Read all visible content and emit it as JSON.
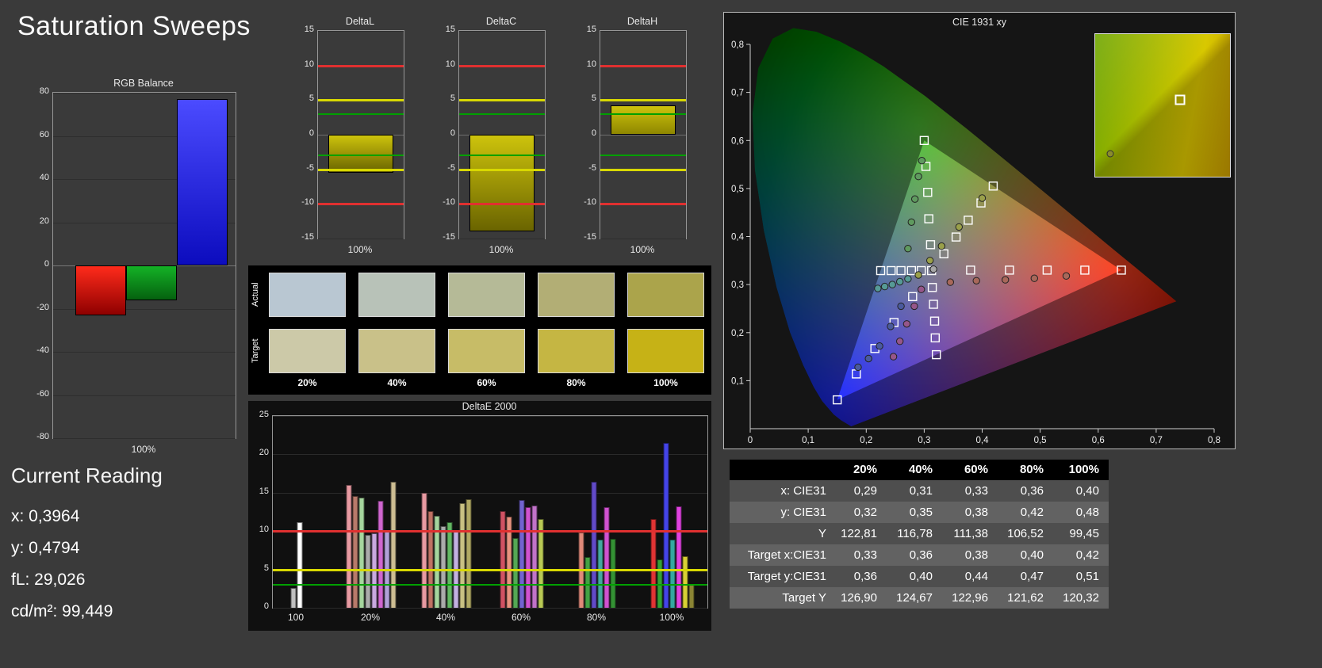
{
  "page": {
    "title": "Saturation Sweeps"
  },
  "current_reading": {
    "heading": "Current Reading",
    "lines": [
      "x: 0,3964",
      "y: 0,4794",
      "fL: 29,026",
      "cd/m²: 99,449"
    ]
  },
  "swatches": {
    "row_labels": [
      "Actual",
      "Target"
    ],
    "col_labels": [
      "20%",
      "40%",
      "60%",
      "80%",
      "100%"
    ],
    "actual_colors": [
      "#b9c7d2",
      "#b8c2b8",
      "#b5ba97",
      "#b2ae75",
      "#aba44b"
    ],
    "target_colors": [
      "#ccc9a8",
      "#c9c189",
      "#c7bc67",
      "#c5b643",
      "#c6b216"
    ]
  },
  "table": {
    "headers": [
      "",
      "20%",
      "40%",
      "60%",
      "80%",
      "100%"
    ],
    "rows": [
      {
        "label": "x: CIE31",
        "values": [
          "0,29",
          "0,31",
          "0,33",
          "0,36",
          "0,40"
        ]
      },
      {
        "label": "y: CIE31",
        "values": [
          "0,32",
          "0,35",
          "0,38",
          "0,42",
          "0,48"
        ]
      },
      {
        "label": "Y",
        "values": [
          "122,81",
          "116,78",
          "111,38",
          "106,52",
          "99,45"
        ]
      },
      {
        "label": "Target x:CIE31",
        "values": [
          "0,33",
          "0,36",
          "0,38",
          "0,40",
          "0,42"
        ]
      },
      {
        "label": "Target y:CIE31",
        "values": [
          "0,36",
          "0,40",
          "0,44",
          "0,47",
          "0,51"
        ]
      },
      {
        "label": "Target Y",
        "values": [
          "126,90",
          "124,67",
          "122,96",
          "121,62",
          "120,32"
        ]
      }
    ]
  },
  "chart_data": [
    {
      "id": "rgb_balance",
      "type": "bar",
      "title": "RGB Balance",
      "categories": [
        "Red",
        "Green",
        "Blue"
      ],
      "values": [
        -23,
        -16,
        77
      ],
      "colors": [
        "#e81010",
        "#0f9a20",
        "#2626f0"
      ],
      "ylim": [
        -80,
        80
      ],
      "yticks": [
        80,
        60,
        40,
        20,
        0,
        -20,
        -40,
        -60,
        -80
      ],
      "xlabel": "100%"
    },
    {
      "id": "delta_l",
      "type": "bar",
      "title": "DeltaL",
      "categories": [
        "100%"
      ],
      "values": [
        -5.5
      ],
      "ylim": [
        -15,
        15
      ],
      "yticks": [
        15,
        10,
        5,
        0,
        -5,
        -10,
        -15
      ],
      "ref_lines": [
        {
          "y": 10,
          "color": "#e03030"
        },
        {
          "y": 5,
          "color": "#d8d800"
        },
        {
          "y": 3,
          "color": "#00a000"
        },
        {
          "y": -3,
          "color": "#00a000"
        },
        {
          "y": -5,
          "color": "#d8d800"
        },
        {
          "y": -10,
          "color": "#e03030"
        }
      ],
      "bar_color": "#b8ae00",
      "xlabel": "100%"
    },
    {
      "id": "delta_c",
      "type": "bar",
      "title": "DeltaC",
      "categories": [
        "100%"
      ],
      "values": [
        -14
      ],
      "ylim": [
        -15,
        15
      ],
      "yticks": [
        15,
        10,
        5,
        0,
        -5,
        -10,
        -15
      ],
      "ref_lines": [
        {
          "y": 10,
          "color": "#e03030"
        },
        {
          "y": 5,
          "color": "#d8d800"
        },
        {
          "y": 3,
          "color": "#00a000"
        },
        {
          "y": -3,
          "color": "#00a000"
        },
        {
          "y": -5,
          "color": "#d8d800"
        },
        {
          "y": -10,
          "color": "#e03030"
        }
      ],
      "bar_color": "#b8ae00",
      "xlabel": "100%"
    },
    {
      "id": "delta_h",
      "type": "bar",
      "title": "DeltaH",
      "categories": [
        "100%"
      ],
      "values": [
        4.2
      ],
      "ylim": [
        -15,
        15
      ],
      "yticks": [
        15,
        10,
        5,
        0,
        -5,
        -10,
        -15
      ],
      "ref_lines": [
        {
          "y": 10,
          "color": "#e03030"
        },
        {
          "y": 5,
          "color": "#d8d800"
        },
        {
          "y": 3,
          "color": "#00a000"
        },
        {
          "y": -3,
          "color": "#00a000"
        },
        {
          "y": -5,
          "color": "#d8d800"
        },
        {
          "y": -10,
          "color": "#e03030"
        }
      ],
      "bar_color": "#b8ae00",
      "xlabel": "100%"
    },
    {
      "id": "delta_e2000",
      "type": "bar",
      "title": "DeltaE 2000",
      "ylim": [
        0,
        25
      ],
      "yticks": [
        0,
        5,
        10,
        15,
        20,
        25
      ],
      "ref_lines": [
        {
          "y": 10,
          "color": "#e03030"
        },
        {
          "y": 5,
          "color": "#d8d800"
        },
        {
          "y": 3,
          "color": "#00a000"
        }
      ],
      "groups": [
        {
          "label": "100",
          "bars": [
            {
              "v": 2.6,
              "c": "#c0c0c0"
            },
            {
              "v": 11.2,
              "c": "#ffffff"
            }
          ]
        },
        {
          "label": "20%",
          "bars": [
            {
              "v": 16.0,
              "c": "#e89aa2"
            },
            {
              "v": 14.6,
              "c": "#b87a6a"
            },
            {
              "v": 14.4,
              "c": "#a6d69e"
            },
            {
              "v": 9.5,
              "c": "#ababab"
            },
            {
              "v": 9.7,
              "c": "#c9a9e0"
            },
            {
              "v": 14.0,
              "c": "#cf66cf"
            },
            {
              "v": 9.9,
              "c": "#b1a1d9"
            },
            {
              "v": 16.4,
              "c": "#cdbd92"
            }
          ]
        },
        {
          "label": "40%",
          "bars": [
            {
              "v": 15.0,
              "c": "#e89aa2"
            },
            {
              "v": 12.6,
              "c": "#bf7263"
            },
            {
              "v": 12.0,
              "c": "#a6d69e"
            },
            {
              "v": 10.6,
              "c": "#ababab"
            },
            {
              "v": 11.2,
              "c": "#63b863"
            },
            {
              "v": 9.9,
              "c": "#c3b2e2"
            },
            {
              "v": 13.6,
              "c": "#c9c183"
            },
            {
              "v": 14.2,
              "c": "#b1a963"
            }
          ]
        },
        {
          "label": "60%",
          "bars": [
            {
              "v": 12.6,
              "c": "#d05263"
            },
            {
              "v": 11.9,
              "c": "#e8937f"
            },
            {
              "v": 9.1,
              "c": "#54a854"
            },
            {
              "v": 14.1,
              "c": "#7263d0"
            },
            {
              "v": 13.1,
              "c": "#d052d0"
            },
            {
              "v": 13.3,
              "c": "#c273c9"
            },
            {
              "v": 11.6,
              "c": "#b9c954"
            }
          ]
        },
        {
          "label": "80%",
          "bars": [
            {
              "v": 9.8,
              "c": "#e08a79"
            },
            {
              "v": 6.6,
              "c": "#44a244"
            },
            {
              "v": 16.4,
              "c": "#624bc9"
            },
            {
              "v": 8.9,
              "c": "#44a8a0"
            },
            {
              "v": 13.1,
              "c": "#d052d0"
            },
            {
              "v": 9.0,
              "c": "#349234"
            }
          ]
        },
        {
          "label": "100%",
          "bars": [
            {
              "v": 11.6,
              "c": "#e03434"
            },
            {
              "v": 6.3,
              "c": "#34a234"
            },
            {
              "v": 21.5,
              "c": "#4444e8"
            },
            {
              "v": 8.9,
              "c": "#34a8a0"
            },
            {
              "v": 13.2,
              "c": "#e042e0"
            },
            {
              "v": 6.7,
              "c": "#d8d034"
            },
            {
              "v": 3.0,
              "c": "#8a8434"
            }
          ]
        }
      ]
    },
    {
      "id": "cie1931",
      "type": "scatter",
      "title": "CIE 1931 xy",
      "xlim": [
        0,
        0.8
      ],
      "ylim": [
        0,
        0.8
      ],
      "xtick_labels": [
        "0",
        "0,1",
        "0,2",
        "0,3",
        "0,4",
        "0,5",
        "0,6",
        "0,7",
        "0,8"
      ],
      "ytick_labels": [
        "0,1",
        "0,2",
        "0,3",
        "0,4",
        "0,5",
        "0,6",
        "0,7",
        "0,8"
      ],
      "gamut_triangle": [
        [
          0.64,
          0.33
        ],
        [
          0.3,
          0.6
        ],
        [
          0.15,
          0.06
        ]
      ],
      "targets": {
        "red": [
          [
            0.38,
            0.33
          ],
          [
            0.447,
            0.33
          ],
          [
            0.512,
            0.33
          ],
          [
            0.577,
            0.33
          ],
          [
            0.64,
            0.33
          ]
        ],
        "green": [
          [
            0.311,
            0.383
          ],
          [
            0.308,
            0.437
          ],
          [
            0.306,
            0.492
          ],
          [
            0.303,
            0.546
          ],
          [
            0.3,
            0.6
          ]
        ],
        "blue": [
          [
            0.28,
            0.275
          ],
          [
            0.248,
            0.221
          ],
          [
            0.215,
            0.167
          ],
          [
            0.183,
            0.114
          ],
          [
            0.15,
            0.06
          ]
        ],
        "yellow": [
          [
            0.334,
            0.364
          ],
          [
            0.355,
            0.399
          ],
          [
            0.376,
            0.434
          ],
          [
            0.398,
            0.47
          ],
          [
            0.419,
            0.505
          ]
        ],
        "cyan": [
          [
            0.295,
            0.329
          ],
          [
            0.278,
            0.329
          ],
          [
            0.26,
            0.329
          ],
          [
            0.243,
            0.329
          ],
          [
            0.225,
            0.329
          ]
        ],
        "magenta": [
          [
            0.314,
            0.294
          ],
          [
            0.316,
            0.259
          ],
          [
            0.318,
            0.224
          ],
          [
            0.319,
            0.189
          ],
          [
            0.321,
            0.154
          ]
        ],
        "white": [
          [
            0.3127,
            0.329
          ]
        ]
      },
      "measurements": {
        "yellow": {
          "color": "#9aa04a",
          "points": [
            [
              0.29,
              0.32
            ],
            [
              0.31,
              0.35
            ],
            [
              0.33,
              0.38
            ],
            [
              0.36,
              0.42
            ],
            [
              0.4,
              0.48
            ]
          ]
        },
        "red": {
          "color": "#a8685a",
          "points": [
            [
              0.345,
              0.305
            ],
            [
              0.39,
              0.308
            ],
            [
              0.44,
              0.31
            ],
            [
              0.49,
              0.313
            ],
            [
              0.545,
              0.318
            ]
          ]
        },
        "green": {
          "color": "#5f9a5f",
          "points": [
            [
              0.272,
              0.375
            ],
            [
              0.278,
              0.43
            ],
            [
              0.284,
              0.478
            ],
            [
              0.29,
              0.525
            ],
            [
              0.296,
              0.558
            ]
          ]
        },
        "cyan": {
          "color": "#569a96",
          "points": [
            [
              0.272,
              0.312
            ],
            [
              0.258,
              0.306
            ],
            [
              0.245,
              0.3
            ],
            [
              0.232,
              0.296
            ],
            [
              0.22,
              0.292
            ]
          ]
        },
        "magenta": {
          "color": "#96568a",
          "points": [
            [
              0.295,
              0.29
            ],
            [
              0.283,
              0.255
            ],
            [
              0.27,
              0.218
            ],
            [
              0.258,
              0.182
            ],
            [
              0.247,
              0.15
            ]
          ]
        },
        "blue": {
          "color": "#4a5a9e",
          "points": [
            [
              0.26,
              0.255
            ],
            [
              0.242,
              0.213
            ],
            [
              0.223,
              0.172
            ],
            [
              0.204,
              0.146
            ],
            [
              0.186,
              0.128
            ]
          ]
        },
        "white": {
          "color": "#a8a8a8",
          "points": [
            [
              0.316,
              0.332
            ]
          ]
        }
      },
      "inset": {
        "square_pos": {
          "x_pct": 63,
          "y_pct": 46
        },
        "dot_pos": {
          "x_pct": 11,
          "y_pct": 84
        }
      }
    }
  ]
}
